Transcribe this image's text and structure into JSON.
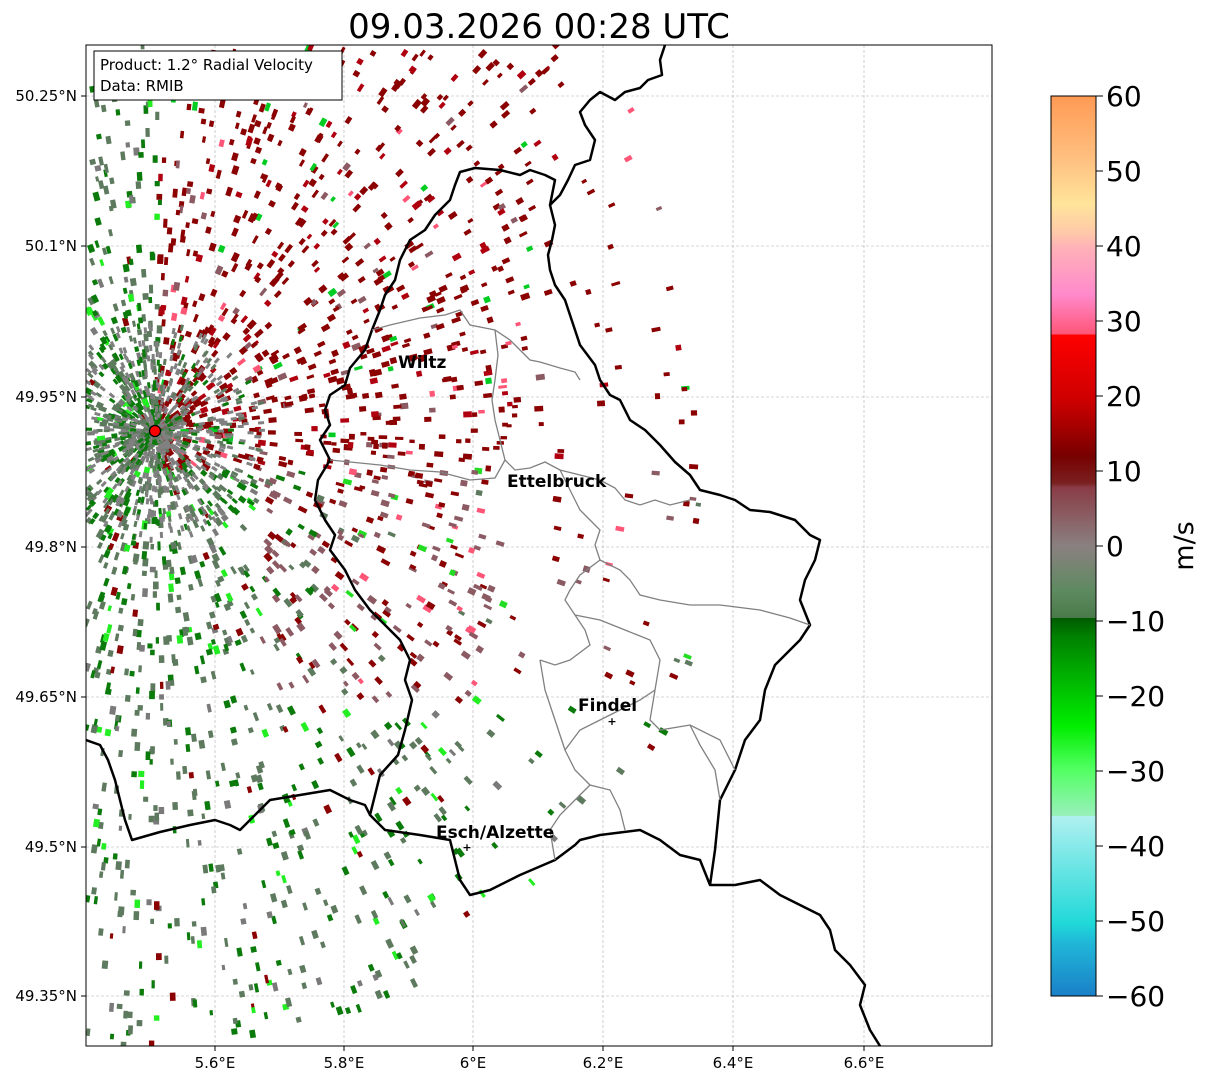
{
  "title": "09.03.2026 00:28 UTC",
  "info_box": {
    "product": "Product: 1.2° Radial Velocity",
    "data_source": "Data: RMIB"
  },
  "axes": {
    "lat_ticks": [
      "50.25°N",
      "50.1°N",
      "49.95°N",
      "49.8°N",
      "49.65°N",
      "49.5°N",
      "49.35°N"
    ],
    "lon_ticks": [
      "5.6°E",
      "5.8°E",
      "6°E",
      "6.2°E",
      "6.4°E",
      "6.6°E"
    ]
  },
  "places": [
    "Wiltz",
    "Ettelbruck",
    "Findel",
    "Esch/Alzette"
  ],
  "colorbar": {
    "unit": "m/s",
    "ticks": [
      "60",
      "50",
      "40",
      "30",
      "20",
      "10",
      "0",
      "−10",
      "−20",
      "−30",
      "−40",
      "−50",
      "−60"
    ],
    "min": -60,
    "max": 60
  },
  "colors": {
    "border": "#000000",
    "canton_border": "#808080",
    "radar_marker": "#ff0000",
    "receding": "#8b0000",
    "near_zero_pos": "#8b5a63",
    "near_zero_neg": "#5e7a5e",
    "approaching": "#0a7a0a"
  }
}
